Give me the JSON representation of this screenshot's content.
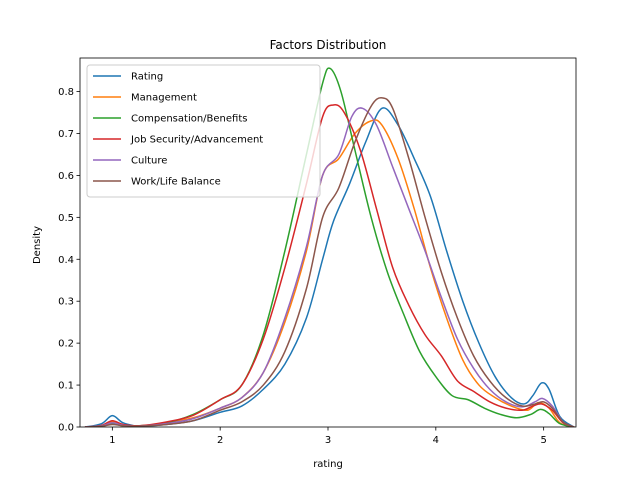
{
  "chart_data": {
    "type": "line",
    "title": "Factors Distribution",
    "xlabel": "rating",
    "ylabel": "Density",
    "xlim": [
      0.7,
      5.3
    ],
    "ylim": [
      0,
      0.88
    ],
    "xticks": [
      1,
      2,
      3,
      4,
      5
    ],
    "yticks": [
      0.0,
      0.1,
      0.2,
      0.3,
      0.4,
      0.5,
      0.6,
      0.7,
      0.8
    ],
    "legend_position": "upper-left",
    "grid": false,
    "series": [
      {
        "name": "Rating",
        "color": "#1f77b4",
        "points": [
          [
            0.75,
            0
          ],
          [
            0.9,
            0.008
          ],
          [
            1.0,
            0.027
          ],
          [
            1.1,
            0.01
          ],
          [
            1.25,
            0.002
          ],
          [
            1.5,
            0.006
          ],
          [
            1.75,
            0.015
          ],
          [
            2.0,
            0.035
          ],
          [
            2.2,
            0.05
          ],
          [
            2.4,
            0.09
          ],
          [
            2.6,
            0.15
          ],
          [
            2.8,
            0.26
          ],
          [
            2.95,
            0.4
          ],
          [
            3.05,
            0.49
          ],
          [
            3.2,
            0.58
          ],
          [
            3.35,
            0.68
          ],
          [
            3.5,
            0.76
          ],
          [
            3.65,
            0.72
          ],
          [
            3.8,
            0.64
          ],
          [
            3.95,
            0.55
          ],
          [
            4.1,
            0.42
          ],
          [
            4.25,
            0.3
          ],
          [
            4.4,
            0.2
          ],
          [
            4.55,
            0.12
          ],
          [
            4.7,
            0.07
          ],
          [
            4.82,
            0.055
          ],
          [
            4.9,
            0.075
          ],
          [
            4.98,
            0.105
          ],
          [
            5.05,
            0.09
          ],
          [
            5.15,
            0.025
          ],
          [
            5.28,
            0
          ]
        ]
      },
      {
        "name": "Management",
        "color": "#ff7f0e",
        "points": [
          [
            0.75,
            0
          ],
          [
            0.9,
            0.003
          ],
          [
            1.0,
            0.012
          ],
          [
            1.1,
            0.005
          ],
          [
            1.25,
            0.002
          ],
          [
            1.5,
            0.01
          ],
          [
            1.75,
            0.022
          ],
          [
            2.0,
            0.045
          ],
          [
            2.2,
            0.07
          ],
          [
            2.4,
            0.13
          ],
          [
            2.6,
            0.25
          ],
          [
            2.8,
            0.42
          ],
          [
            2.95,
            0.6
          ],
          [
            3.1,
            0.64
          ],
          [
            3.25,
            0.7
          ],
          [
            3.4,
            0.73
          ],
          [
            3.5,
            0.72
          ],
          [
            3.65,
            0.64
          ],
          [
            3.8,
            0.52
          ],
          [
            3.95,
            0.38
          ],
          [
            4.1,
            0.26
          ],
          [
            4.25,
            0.16
          ],
          [
            4.4,
            0.1
          ],
          [
            4.55,
            0.07
          ],
          [
            4.7,
            0.05
          ],
          [
            4.85,
            0.04
          ],
          [
            4.95,
            0.058
          ],
          [
            5.05,
            0.045
          ],
          [
            5.15,
            0.01
          ],
          [
            5.28,
            0
          ]
        ]
      },
      {
        "name": "Compensation/Benefits",
        "color": "#2ca02c",
        "points": [
          [
            0.75,
            0
          ],
          [
            0.9,
            0.002
          ],
          [
            1.0,
            0.008
          ],
          [
            1.1,
            0.003
          ],
          [
            1.25,
            0.003
          ],
          [
            1.5,
            0.01
          ],
          [
            1.75,
            0.03
          ],
          [
            2.0,
            0.065
          ],
          [
            2.2,
            0.1
          ],
          [
            2.4,
            0.22
          ],
          [
            2.6,
            0.42
          ],
          [
            2.8,
            0.65
          ],
          [
            2.95,
            0.82
          ],
          [
            3.02,
            0.855
          ],
          [
            3.12,
            0.8
          ],
          [
            3.25,
            0.66
          ],
          [
            3.4,
            0.5
          ],
          [
            3.55,
            0.37
          ],
          [
            3.7,
            0.27
          ],
          [
            3.85,
            0.18
          ],
          [
            4.0,
            0.12
          ],
          [
            4.15,
            0.075
          ],
          [
            4.3,
            0.065
          ],
          [
            4.45,
            0.045
          ],
          [
            4.6,
            0.03
          ],
          [
            4.75,
            0.022
          ],
          [
            4.88,
            0.03
          ],
          [
            4.97,
            0.042
          ],
          [
            5.05,
            0.032
          ],
          [
            5.15,
            0.008
          ],
          [
            5.28,
            0
          ]
        ]
      },
      {
        "name": "Job Security/Advancement",
        "color": "#d62728",
        "points": [
          [
            0.75,
            0
          ],
          [
            0.9,
            0.004
          ],
          [
            1.0,
            0.015
          ],
          [
            1.1,
            0.006
          ],
          [
            1.25,
            0.003
          ],
          [
            1.5,
            0.012
          ],
          [
            1.75,
            0.028
          ],
          [
            2.0,
            0.065
          ],
          [
            2.2,
            0.1
          ],
          [
            2.4,
            0.21
          ],
          [
            2.6,
            0.38
          ],
          [
            2.8,
            0.58
          ],
          [
            2.95,
            0.74
          ],
          [
            3.05,
            0.768
          ],
          [
            3.15,
            0.75
          ],
          [
            3.3,
            0.66
          ],
          [
            3.45,
            0.52
          ],
          [
            3.6,
            0.38
          ],
          [
            3.75,
            0.29
          ],
          [
            3.9,
            0.22
          ],
          [
            4.05,
            0.17
          ],
          [
            4.2,
            0.11
          ],
          [
            4.35,
            0.085
          ],
          [
            4.5,
            0.06
          ],
          [
            4.65,
            0.045
          ],
          [
            4.8,
            0.04
          ],
          [
            4.9,
            0.05
          ],
          [
            4.98,
            0.055
          ],
          [
            5.08,
            0.04
          ],
          [
            5.18,
            0.01
          ],
          [
            5.28,
            0
          ]
        ]
      },
      {
        "name": "Culture",
        "color": "#9467bd",
        "points": [
          [
            0.75,
            0
          ],
          [
            0.9,
            0.003
          ],
          [
            1.0,
            0.01
          ],
          [
            1.1,
            0.004
          ],
          [
            1.25,
            0.002
          ],
          [
            1.5,
            0.008
          ],
          [
            1.75,
            0.02
          ],
          [
            2.0,
            0.045
          ],
          [
            2.2,
            0.07
          ],
          [
            2.4,
            0.13
          ],
          [
            2.6,
            0.26
          ],
          [
            2.8,
            0.43
          ],
          [
            2.95,
            0.6
          ],
          [
            3.1,
            0.65
          ],
          [
            3.22,
            0.74
          ],
          [
            3.32,
            0.76
          ],
          [
            3.45,
            0.72
          ],
          [
            3.6,
            0.62
          ],
          [
            3.75,
            0.52
          ],
          [
            3.9,
            0.42
          ],
          [
            4.05,
            0.31
          ],
          [
            4.2,
            0.21
          ],
          [
            4.35,
            0.14
          ],
          [
            4.5,
            0.09
          ],
          [
            4.65,
            0.06
          ],
          [
            4.8,
            0.048
          ],
          [
            4.92,
            0.06
          ],
          [
            4.99,
            0.068
          ],
          [
            5.08,
            0.05
          ],
          [
            5.18,
            0.012
          ],
          [
            5.28,
            0
          ]
        ]
      },
      {
        "name": "Work/Life Balance",
        "color": "#8c564b",
        "points": [
          [
            0.75,
            0
          ],
          [
            0.9,
            0.002
          ],
          [
            1.0,
            0.006
          ],
          [
            1.1,
            0.003
          ],
          [
            1.25,
            0.002
          ],
          [
            1.5,
            0.006
          ],
          [
            1.75,
            0.015
          ],
          [
            2.0,
            0.04
          ],
          [
            2.2,
            0.06
          ],
          [
            2.4,
            0.1
          ],
          [
            2.6,
            0.18
          ],
          [
            2.8,
            0.33
          ],
          [
            2.95,
            0.5
          ],
          [
            3.1,
            0.57
          ],
          [
            3.25,
            0.68
          ],
          [
            3.4,
            0.765
          ],
          [
            3.5,
            0.785
          ],
          [
            3.6,
            0.76
          ],
          [
            3.75,
            0.64
          ],
          [
            3.9,
            0.5
          ],
          [
            4.05,
            0.37
          ],
          [
            4.2,
            0.26
          ],
          [
            4.35,
            0.17
          ],
          [
            4.5,
            0.11
          ],
          [
            4.65,
            0.07
          ],
          [
            4.8,
            0.05
          ],
          [
            4.92,
            0.055
          ],
          [
            5.0,
            0.06
          ],
          [
            5.08,
            0.045
          ],
          [
            5.18,
            0.012
          ],
          [
            5.28,
            0
          ]
        ]
      }
    ]
  }
}
